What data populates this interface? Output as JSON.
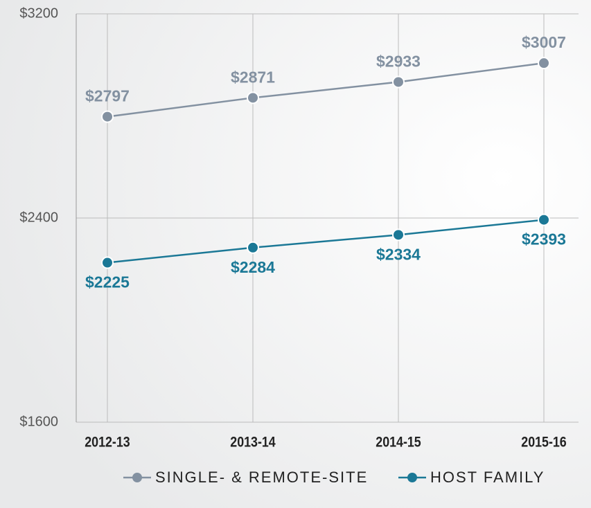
{
  "chart_data": {
    "type": "line",
    "categories": [
      "2012-13",
      "2013-14",
      "2014-15",
      "2015-16"
    ],
    "series": [
      {
        "name": "SINGLE- & REMOTE-SITE",
        "color": "#8391a1",
        "values": [
          2797,
          2871,
          2933,
          3007
        ],
        "value_labels": [
          "$2797",
          "$2871",
          "$2933",
          "$3007"
        ]
      },
      {
        "name": "HOST FAMILY",
        "color": "#1b7896",
        "values": [
          2225,
          2284,
          2334,
          2393
        ],
        "value_labels": [
          "$2225",
          "$2284",
          "$2334",
          "$2393"
        ]
      }
    ],
    "ylim": [
      1600,
      3200
    ],
    "yticks": [
      {
        "value": 1600,
        "label": "$1600"
      },
      {
        "value": 2400,
        "label": "$2400"
      },
      {
        "value": 3200,
        "label": "$3200"
      }
    ],
    "grid": true
  }
}
